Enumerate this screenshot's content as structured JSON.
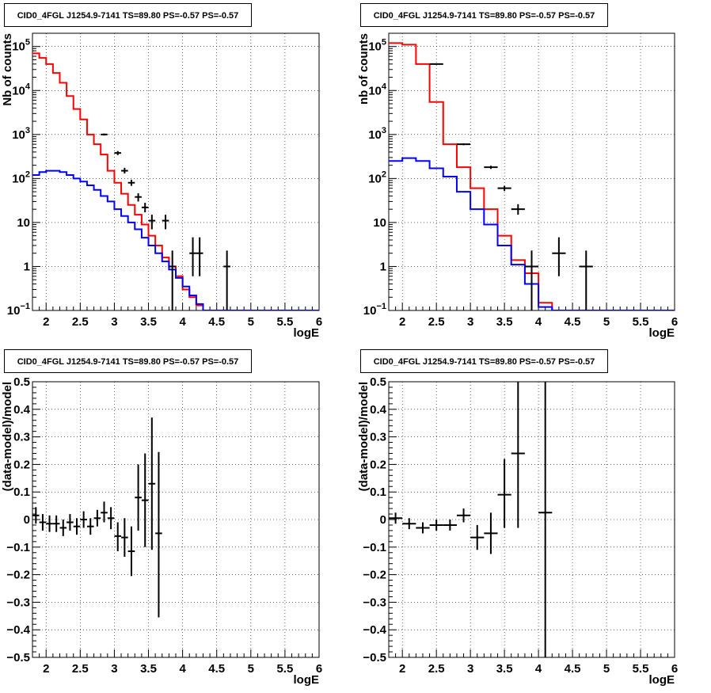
{
  "panels": [
    {
      "title": "CID0_4FGL J1254.9-7141 TS=89.80 PS=-0.57 PS=-0.57",
      "xlabel": "logE",
      "ylabel": "Nb of counts",
      "yscale": "log",
      "xlim": [
        1.8,
        6.0
      ],
      "ylim": [
        0.1,
        200000
      ],
      "x_ticks": [
        2,
        2.5,
        3,
        3.5,
        4,
        4.5,
        5,
        5.5,
        6
      ],
      "x_tick_labels": [
        "2",
        "2.5",
        "3",
        "3.5",
        "4",
        "4.5",
        "5",
        "5.5",
        "6"
      ],
      "y_ticks": [
        0.1,
        1,
        10,
        100,
        1000,
        10000,
        100000
      ],
      "y_tick_labels": [
        {
          "base": "10",
          "exp": "−1"
        },
        {
          "base": "1",
          "exp": ""
        },
        {
          "base": "10",
          "exp": ""
        },
        {
          "base": "10",
          "exp": "2"
        },
        {
          "base": "10",
          "exp": "3"
        },
        {
          "base": "10",
          "exp": "4"
        },
        {
          "base": "10",
          "exp": "5"
        }
      ],
      "grid": true,
      "chart_data": {
        "type": "line",
        "series": [
          {
            "color": "#ff0000",
            "style": "step",
            "edges": [
              1.8,
              1.9,
              2.0,
              2.1,
              2.2,
              2.3,
              2.4,
              2.5,
              2.6,
              2.7,
              2.8,
              2.9,
              3.0,
              3.1,
              3.2,
              3.3,
              3.4,
              3.5,
              3.6,
              3.7,
              3.8,
              3.9,
              4.0,
              4.1,
              4.2,
              4.3,
              4.4,
              4.5,
              4.6,
              4.7,
              4.8,
              4.9,
              5.0,
              5.1,
              5.2,
              5.3,
              5.4,
              5.5,
              5.6,
              5.7,
              5.8,
              5.9,
              6.0
            ],
            "values": [
              70000,
              55000,
              40000,
              25000,
              15000,
              7500,
              3800,
              2200,
              1000,
              600,
              350,
              150,
              80,
              45,
              25,
              15,
              9,
              5,
              3,
              1.6,
              1.0,
              0.6,
              0.3,
              0.2,
              0.13,
              0.1,
              0.1,
              0.1,
              0.1,
              0.1,
              0.1,
              0.1,
              0.1,
              0.1,
              0.1,
              0.1,
              0.1,
              0.1,
              0.1,
              0.1,
              0.1,
              0.1
            ]
          },
          {
            "color": "#0000ff",
            "style": "step",
            "edges": [
              1.8,
              1.9,
              2.0,
              2.1,
              2.2,
              2.3,
              2.4,
              2.5,
              2.6,
              2.7,
              2.8,
              2.9,
              3.0,
              3.1,
              3.2,
              3.3,
              3.4,
              3.5,
              3.6,
              3.7,
              3.8,
              3.9,
              4.0,
              4.1,
              4.2,
              4.3,
              4.4,
              4.5,
              4.6,
              4.7,
              4.8,
              4.9,
              5.0,
              5.1,
              5.2,
              5.3,
              5.4,
              5.5,
              5.6,
              5.7,
              5.8,
              5.9,
              6.0
            ],
            "values": [
              120,
              140,
              150,
              150,
              140,
              120,
              100,
              85,
              70,
              55,
              40,
              30,
              20,
              14,
              10,
              7,
              4.5,
              3,
              2,
              1.3,
              0.85,
              0.55,
              0.35,
              0.22,
              0.14,
              0.1,
              0.1,
              0.1,
              0.1,
              0.1,
              0.1,
              0.1,
              0.1,
              0.1,
              0.1,
              0.1,
              0.1,
              0.1,
              0.1,
              0.1,
              0.1,
              0.1
            ]
          }
        ],
        "points": [
          {
            "x": 2.85,
            "y": 1000,
            "xerr": 0.05,
            "ylo": 950,
            "yhi": 1050
          },
          {
            "x": 3.05,
            "y": 380,
            "xerr": 0.05,
            "ylo": 340,
            "yhi": 420
          },
          {
            "x": 3.15,
            "y": 150,
            "xerr": 0.05,
            "ylo": 130,
            "yhi": 175
          },
          {
            "x": 3.25,
            "y": 80,
            "xerr": 0.05,
            "ylo": 68,
            "yhi": 94
          },
          {
            "x": 3.35,
            "y": 38,
            "xerr": 0.05,
            "ylo": 30,
            "yhi": 46
          },
          {
            "x": 3.45,
            "y": 22,
            "xerr": 0.05,
            "ylo": 17,
            "yhi": 28
          },
          {
            "x": 3.55,
            "y": 11,
            "xerr": 0.05,
            "ylo": 7,
            "yhi": 15
          },
          {
            "x": 3.75,
            "y": 11,
            "xerr": 0.05,
            "ylo": 7,
            "yhi": 15
          },
          {
            "x": 3.85,
            "y": 1,
            "xerr": 0.05,
            "ylo": 0.1,
            "yhi": 2.3
          },
          {
            "x": 4.15,
            "y": 2,
            "xerr": 0.05,
            "ylo": 0.6,
            "yhi": 4.6
          },
          {
            "x": 4.25,
            "y": 2,
            "xerr": 0.05,
            "ylo": 0.6,
            "yhi": 4.6
          },
          {
            "x": 4.65,
            "y": 1,
            "xerr": 0.05,
            "ylo": 0.1,
            "yhi": 2.3
          }
        ]
      }
    },
    {
      "title": "CID0_4FGL J1254.9-7141 TS=89.80 PS=-0.57 PS=-0.57",
      "xlabel": "logE",
      "ylabel": "nb of counts",
      "yscale": "log",
      "xlim": [
        1.8,
        6.0
      ],
      "ylim": [
        0.1,
        200000
      ],
      "x_ticks": [
        2,
        2.5,
        3,
        3.5,
        4,
        4.5,
        5,
        5.5,
        6
      ],
      "x_tick_labels": [
        "2",
        "2.5",
        "3",
        "3.5",
        "4",
        "4.5",
        "5",
        "5.5",
        "6"
      ],
      "y_ticks": [
        0.1,
        1,
        10,
        100,
        1000,
        10000,
        100000
      ],
      "y_tick_labels": [
        {
          "base": "10",
          "exp": "−1"
        },
        {
          "base": "1",
          "exp": ""
        },
        {
          "base": "10",
          "exp": ""
        },
        {
          "base": "10",
          "exp": "2"
        },
        {
          "base": "10",
          "exp": "3"
        },
        {
          "base": "10",
          "exp": "4"
        },
        {
          "base": "10",
          "exp": "5"
        }
      ],
      "grid": true,
      "chart_data": {
        "type": "line",
        "series": [
          {
            "color": "#ff0000",
            "style": "step",
            "edges": [
              1.8,
              2.0,
              2.2,
              2.4,
              2.6,
              2.8,
              3.0,
              3.2,
              3.4,
              3.6,
              3.8,
              4.0,
              4.2,
              4.4,
              4.6,
              4.8,
              5.0,
              5.2,
              5.4,
              5.6,
              5.8,
              6.0
            ],
            "values": [
              120000,
              110000,
              40000,
              5500,
              600,
              180,
              60,
              20,
              5,
              1.4,
              0.7,
              0.15,
              0.1,
              0.1,
              0.1,
              0.1,
              0.1,
              0.1,
              0.1,
              0.1,
              0.1
            ]
          },
          {
            "color": "#0000ff",
            "style": "step",
            "edges": [
              1.8,
              2.0,
              2.2,
              2.4,
              2.6,
              2.8,
              3.0,
              3.2,
              3.4,
              3.6,
              3.8,
              4.0,
              4.2,
              4.4,
              4.6,
              4.8,
              5.0,
              5.2,
              5.4,
              5.6,
              5.8,
              6.0
            ],
            "values": [
              250,
              290,
              250,
              170,
              110,
              50,
              20,
              9,
              3,
              1.1,
              0.4,
              0.12,
              0.1,
              0.1,
              0.1,
              0.1,
              0.1,
              0.1,
              0.1,
              0.1,
              0.1
            ]
          }
        ],
        "points": [
          {
            "x": 2.5,
            "y": 40000,
            "xerr": 0.1,
            "ylo": 39000,
            "yhi": 41000
          },
          {
            "x": 2.9,
            "y": 600,
            "xerr": 0.1,
            "ylo": 570,
            "yhi": 630
          },
          {
            "x": 3.3,
            "y": 180,
            "xerr": 0.1,
            "ylo": 165,
            "yhi": 195
          },
          {
            "x": 3.5,
            "y": 60,
            "xerr": 0.1,
            "ylo": 52,
            "yhi": 68
          },
          {
            "x": 3.7,
            "y": 20,
            "xerr": 0.1,
            "ylo": 15,
            "yhi": 26
          },
          {
            "x": 3.9,
            "y": 1,
            "xerr": 0.1,
            "ylo": 0.1,
            "yhi": 2.3
          },
          {
            "x": 4.3,
            "y": 2,
            "xerr": 0.1,
            "ylo": 0.6,
            "yhi": 4.6
          },
          {
            "x": 4.7,
            "y": 1,
            "xerr": 0.1,
            "ylo": 0.1,
            "yhi": 2.3
          }
        ]
      }
    },
    {
      "title": "CID0_4FGL J1254.9-7141 TS=89.80 PS=-0.57 PS=-0.57",
      "xlabel": "logE",
      "ylabel": "(data-model)/model",
      "yscale": "linear",
      "xlim": [
        1.8,
        6.0
      ],
      "ylim": [
        -0.5,
        0.5
      ],
      "x_ticks": [
        2,
        2.5,
        3,
        3.5,
        4,
        4.5,
        5,
        5.5,
        6
      ],
      "x_tick_labels": [
        "2",
        "2.5",
        "3",
        "3.5",
        "4",
        "4.5",
        "5",
        "5.5",
        "6"
      ],
      "y_ticks": [
        -0.5,
        -0.4,
        -0.3,
        -0.2,
        -0.1,
        0,
        0.1,
        0.2,
        0.3,
        0.4,
        0.5
      ],
      "y_tick_labels": [
        "−0.5",
        "−0.4",
        "−0.3",
        "−0.2",
        "−0.1",
        "0",
        "0.1",
        "0.2",
        "0.3",
        "0.4",
        "0.5"
      ],
      "grid": true,
      "chart_data": {
        "type": "scatter",
        "points": [
          {
            "x": 1.85,
            "y": 0.015,
            "xerr": 0.05,
            "ylo": -0.015,
            "yhi": 0.045
          },
          {
            "x": 1.95,
            "y": -0.01,
            "xerr": 0.05,
            "ylo": -0.04,
            "yhi": 0.02
          },
          {
            "x": 2.05,
            "y": -0.015,
            "xerr": 0.05,
            "ylo": -0.045,
            "yhi": 0.015
          },
          {
            "x": 2.15,
            "y": -0.015,
            "xerr": 0.05,
            "ylo": -0.045,
            "yhi": 0.015
          },
          {
            "x": 2.25,
            "y": -0.03,
            "xerr": 0.05,
            "ylo": -0.06,
            "yhi": 0.0
          },
          {
            "x": 2.35,
            "y": -0.01,
            "xerr": 0.05,
            "ylo": -0.04,
            "yhi": 0.02
          },
          {
            "x": 2.45,
            "y": -0.025,
            "xerr": 0.05,
            "ylo": -0.055,
            "yhi": 0.005
          },
          {
            "x": 2.55,
            "y": 0.0,
            "xerr": 0.05,
            "ylo": -0.03,
            "yhi": 0.03
          },
          {
            "x": 2.65,
            "y": -0.025,
            "xerr": 0.05,
            "ylo": -0.055,
            "yhi": 0.005
          },
          {
            "x": 2.75,
            "y": 0.005,
            "xerr": 0.05,
            "ylo": -0.025,
            "yhi": 0.035
          },
          {
            "x": 2.85,
            "y": 0.025,
            "xerr": 0.05,
            "ylo": -0.01,
            "yhi": 0.065
          },
          {
            "x": 2.95,
            "y": 0.005,
            "xerr": 0.05,
            "ylo": -0.035,
            "yhi": 0.045
          },
          {
            "x": 3.05,
            "y": -0.06,
            "xerr": 0.05,
            "ylo": -0.115,
            "yhi": -0.01
          },
          {
            "x": 3.15,
            "y": -0.065,
            "xerr": 0.05,
            "ylo": -0.135,
            "yhi": 0.005
          },
          {
            "x": 3.25,
            "y": -0.115,
            "xerr": 0.05,
            "ylo": -0.205,
            "yhi": -0.025
          },
          {
            "x": 3.35,
            "y": 0.08,
            "xerr": 0.05,
            "ylo": -0.04,
            "yhi": 0.2
          },
          {
            "x": 3.45,
            "y": 0.07,
            "xerr": 0.05,
            "ylo": -0.1,
            "yhi": 0.24
          },
          {
            "x": 3.55,
            "y": 0.13,
            "xerr": 0.05,
            "ylo": -0.11,
            "yhi": 0.37
          },
          {
            "x": 3.65,
            "y": -0.05,
            "xerr": 0.05,
            "ylo": -0.355,
            "yhi": 0.245
          }
        ]
      }
    },
    {
      "title": "CID0_4FGL J1254.9-7141 TS=89.80 PS=-0.57 PS=-0.57",
      "xlabel": "logE",
      "ylabel": "(data-model)/model",
      "yscale": "linear",
      "xlim": [
        1.8,
        6.0
      ],
      "ylim": [
        -0.5,
        0.5
      ],
      "x_ticks": [
        2,
        2.5,
        3,
        3.5,
        4,
        4.5,
        5,
        5.5,
        6
      ],
      "x_tick_labels": [
        "2",
        "2.5",
        "3",
        "3.5",
        "4",
        "4.5",
        "5",
        "5.5",
        "6"
      ],
      "y_ticks": [
        -0.5,
        -0.4,
        -0.3,
        -0.2,
        -0.1,
        0,
        0.1,
        0.2,
        0.3,
        0.4,
        0.5
      ],
      "y_tick_labels": [
        "−0.5",
        "−0.4",
        "−0.3",
        "−0.2",
        "−0.1",
        "0",
        "0.1",
        "0.2",
        "0.3",
        "0.4",
        "0.5"
      ],
      "grid": true,
      "chart_data": {
        "type": "scatter",
        "points": [
          {
            "x": 1.9,
            "y": 0.005,
            "xerr": 0.1,
            "ylo": -0.015,
            "yhi": 0.025
          },
          {
            "x": 2.1,
            "y": -0.015,
            "xerr": 0.1,
            "ylo": -0.035,
            "yhi": 0.005
          },
          {
            "x": 2.3,
            "y": -0.03,
            "xerr": 0.1,
            "ylo": -0.05,
            "yhi": -0.01
          },
          {
            "x": 2.5,
            "y": -0.02,
            "xerr": 0.1,
            "ylo": -0.04,
            "yhi": 0.0
          },
          {
            "x": 2.7,
            "y": -0.02,
            "xerr": 0.1,
            "ylo": -0.04,
            "yhi": 0.0
          },
          {
            "x": 2.9,
            "y": 0.015,
            "xerr": 0.1,
            "ylo": -0.01,
            "yhi": 0.04
          },
          {
            "x": 3.1,
            "y": -0.065,
            "xerr": 0.1,
            "ylo": -0.11,
            "yhi": -0.02
          },
          {
            "x": 3.3,
            "y": -0.05,
            "xerr": 0.1,
            "ylo": -0.125,
            "yhi": 0.025
          },
          {
            "x": 3.5,
            "y": 0.09,
            "xerr": 0.1,
            "ylo": -0.03,
            "yhi": 0.22
          },
          {
            "x": 3.7,
            "y": 0.24,
            "xerr": 0.1,
            "ylo": -0.03,
            "yhi": 0.5
          },
          {
            "x": 4.1,
            "y": 0.025,
            "xerr": 0.1,
            "ylo": -0.5,
            "yhi": 0.5
          }
        ]
      }
    }
  ]
}
